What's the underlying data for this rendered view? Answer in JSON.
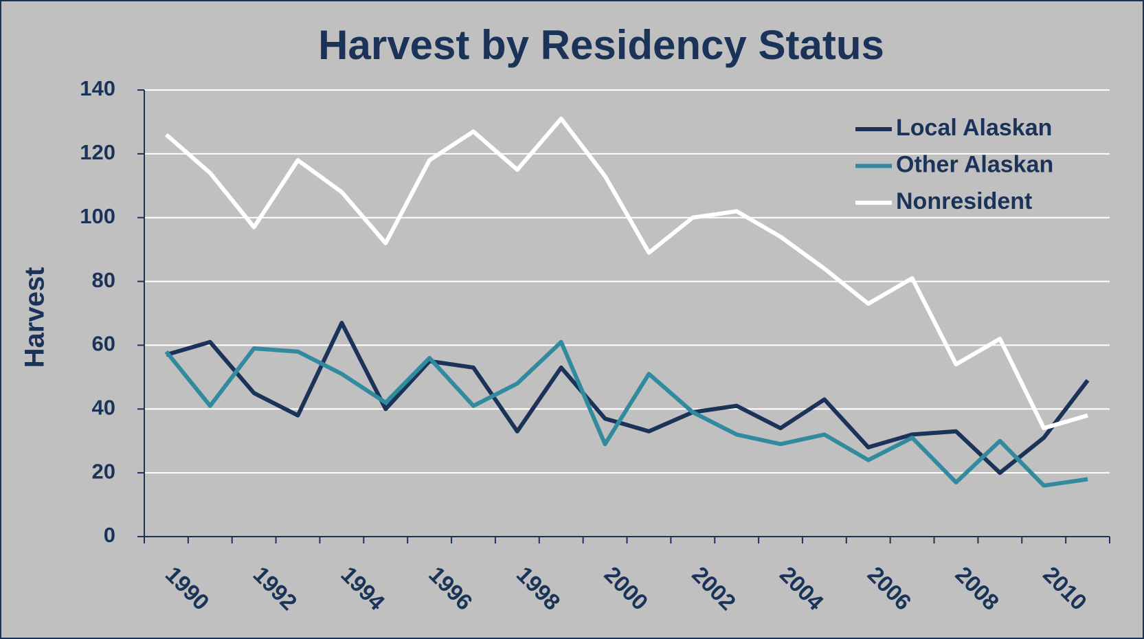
{
  "chart_data": {
    "type": "line",
    "title": "Harvest by Residency Status",
    "y_label": "Harvest",
    "categories": [
      "1990",
      null,
      "1992",
      null,
      "1994",
      null,
      "1996",
      null,
      "1998",
      null,
      "2000",
      null,
      "2002",
      null,
      "2004",
      null,
      "2006",
      null,
      "2008",
      null,
      "2010",
      null
    ],
    "series": [
      {
        "name": "Local Alaskan",
        "color": "#1b3358",
        "values": [
          57,
          61,
          45,
          38,
          67,
          40,
          55,
          53,
          33,
          53,
          37,
          33,
          39,
          41,
          34,
          43,
          28,
          32,
          33,
          20,
          31,
          49
        ]
      },
      {
        "name": "Other Alaskan",
        "color": "#318a9e",
        "values": [
          58,
          41,
          59,
          58,
          51,
          42,
          56,
          41,
          48,
          61,
          29,
          51,
          39,
          32,
          29,
          32,
          24,
          31,
          17,
          30,
          16,
          18
        ]
      },
      {
        "name": "Nonresident",
        "color": "#ffffff",
        "values": [
          126,
          114,
          97,
          118,
          108,
          92,
          118,
          127,
          115,
          131,
          113,
          89,
          100,
          102,
          94,
          84,
          73,
          81,
          54,
          62,
          34,
          38
        ]
      }
    ],
    "ylim": [
      0,
      140
    ],
    "yticks": [
      0,
      20,
      40,
      60,
      80,
      100,
      120,
      140
    ],
    "grid": true,
    "legend": "upper right"
  }
}
